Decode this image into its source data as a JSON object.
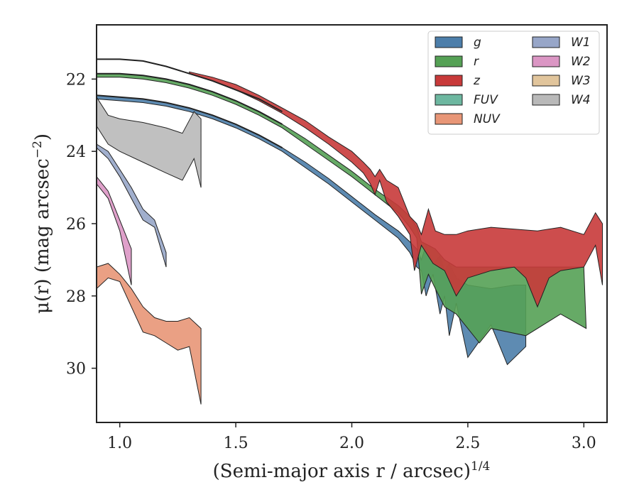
{
  "chart_data": {
    "type": "area",
    "xlabel": "(Semi-major axis r / arcsec)",
    "xlabel_power": "1/4",
    "ylabel": "μ(r) (mag arcsec",
    "ylabel_power": "−2",
    "ylabel_close": ")",
    "xlim": [
      0.9,
      3.1
    ],
    "ylim": [
      31.5,
      20.5
    ],
    "y_inverted": true,
    "xticks": [
      {
        "value": 1.0,
        "label": "1.0"
      },
      {
        "value": 1.5,
        "label": "1.5"
      },
      {
        "value": 2.0,
        "label": "2.0"
      },
      {
        "value": 2.5,
        "label": "2.5"
      },
      {
        "value": 3.0,
        "label": "3.0"
      }
    ],
    "yticks": [
      {
        "value": 22,
        "label": "22"
      },
      {
        "value": 24,
        "label": "24"
      },
      {
        "value": 26,
        "label": "26"
      },
      {
        "value": 28,
        "label": "28"
      },
      {
        "value": 30,
        "label": "30"
      }
    ],
    "legend_position": "top-right",
    "legend_columns": 2,
    "series": [
      {
        "name": "g",
        "color": "#4c7eaa",
        "upper": [
          [
            0.9,
            22.45
          ],
          [
            1.0,
            22.5
          ],
          [
            1.1,
            22.55
          ],
          [
            1.2,
            22.65
          ],
          [
            1.3,
            22.8
          ],
          [
            1.4,
            23.0
          ],
          [
            1.5,
            23.25
          ],
          [
            1.6,
            23.55
          ],
          [
            1.7,
            23.9
          ],
          [
            1.8,
            24.3
          ],
          [
            1.9,
            24.75
          ],
          [
            2.0,
            25.25
          ],
          [
            2.1,
            25.75
          ],
          [
            2.2,
            26.2
          ],
          [
            2.25,
            26.5
          ],
          [
            2.28,
            26.7
          ],
          [
            2.3,
            27.0
          ],
          [
            2.32,
            26.6
          ],
          [
            2.35,
            27.1
          ],
          [
            2.38,
            26.9
          ],
          [
            2.4,
            27.3
          ],
          [
            2.42,
            27.1
          ],
          [
            2.45,
            27.5
          ],
          [
            2.5,
            27.7
          ],
          [
            2.6,
            27.8
          ],
          [
            2.7,
            27.7
          ],
          [
            2.75,
            27.7
          ]
        ],
        "lower": [
          [
            0.9,
            22.55
          ],
          [
            1.0,
            22.6
          ],
          [
            1.1,
            22.65
          ],
          [
            1.2,
            22.75
          ],
          [
            1.3,
            22.9
          ],
          [
            1.4,
            23.1
          ],
          [
            1.5,
            23.35
          ],
          [
            1.6,
            23.65
          ],
          [
            1.7,
            24.0
          ],
          [
            1.8,
            24.45
          ],
          [
            1.9,
            24.9
          ],
          [
            2.0,
            25.4
          ],
          [
            2.1,
            25.9
          ],
          [
            2.2,
            26.4
          ],
          [
            2.25,
            26.8
          ],
          [
            2.28,
            27.2
          ],
          [
            2.3,
            27.3
          ],
          [
            2.32,
            28.0
          ],
          [
            2.35,
            27.4
          ],
          [
            2.38,
            28.5
          ],
          [
            2.4,
            28.0
          ],
          [
            2.42,
            29.1
          ],
          [
            2.45,
            28.2
          ],
          [
            2.5,
            29.7
          ],
          [
            2.6,
            28.8
          ],
          [
            2.67,
            29.9
          ],
          [
            2.75,
            29.4
          ]
        ]
      },
      {
        "name": "r",
        "color": "#55a155",
        "upper": [
          [
            0.9,
            21.85
          ],
          [
            1.0,
            21.85
          ],
          [
            1.1,
            21.9
          ],
          [
            1.2,
            22.0
          ],
          [
            1.3,
            22.15
          ],
          [
            1.4,
            22.35
          ],
          [
            1.5,
            22.6
          ],
          [
            1.6,
            22.9
          ],
          [
            1.7,
            23.25
          ],
          [
            1.8,
            23.65
          ],
          [
            1.9,
            24.1
          ],
          [
            2.0,
            24.55
          ],
          [
            2.1,
            25.05
          ],
          [
            2.2,
            25.5
          ],
          [
            2.25,
            25.8
          ],
          [
            2.28,
            26.1
          ],
          [
            2.3,
            26.5
          ],
          [
            2.33,
            26.6
          ],
          [
            2.36,
            26.7
          ],
          [
            2.4,
            27.0
          ],
          [
            2.45,
            27.2
          ],
          [
            2.5,
            27.2
          ],
          [
            2.6,
            27.2
          ],
          [
            2.7,
            27.2
          ],
          [
            2.8,
            27.2
          ],
          [
            2.9,
            27.2
          ],
          [
            3.0,
            27.2
          ]
        ],
        "lower": [
          [
            0.9,
            21.95
          ],
          [
            1.0,
            21.95
          ],
          [
            1.1,
            22.0
          ],
          [
            1.2,
            22.1
          ],
          [
            1.3,
            22.25
          ],
          [
            1.4,
            22.45
          ],
          [
            1.5,
            22.7
          ],
          [
            1.6,
            23.0
          ],
          [
            1.7,
            23.35
          ],
          [
            1.8,
            23.8
          ],
          [
            1.9,
            24.25
          ],
          [
            2.0,
            24.7
          ],
          [
            2.1,
            25.2
          ],
          [
            2.2,
            25.7
          ],
          [
            2.25,
            26.1
          ],
          [
            2.28,
            26.4
          ],
          [
            2.3,
            27.95
          ],
          [
            2.33,
            27.4
          ],
          [
            2.36,
            27.8
          ],
          [
            2.4,
            28.3
          ],
          [
            2.45,
            28.5
          ],
          [
            2.5,
            28.9
          ],
          [
            2.55,
            29.3
          ],
          [
            2.6,
            28.9
          ],
          [
            2.75,
            29.1
          ],
          [
            2.9,
            28.5
          ],
          [
            3.01,
            28.9
          ]
        ]
      },
      {
        "name": "z",
        "color": "#c83a3a",
        "upper": [
          [
            1.3,
            21.8
          ],
          [
            1.4,
            21.95
          ],
          [
            1.5,
            22.15
          ],
          [
            1.6,
            22.45
          ],
          [
            1.7,
            22.8
          ],
          [
            1.8,
            23.15
          ],
          [
            1.9,
            23.6
          ],
          [
            2.0,
            24.0
          ],
          [
            2.05,
            24.3
          ],
          [
            2.08,
            24.5
          ],
          [
            2.1,
            24.7
          ],
          [
            2.12,
            24.5
          ],
          [
            2.15,
            24.8
          ],
          [
            2.2,
            25.0
          ],
          [
            2.25,
            25.8
          ],
          [
            2.28,
            26.0
          ],
          [
            2.3,
            26.3
          ],
          [
            2.33,
            25.6
          ],
          [
            2.36,
            26.2
          ],
          [
            2.4,
            26.3
          ],
          [
            2.45,
            26.3
          ],
          [
            2.5,
            26.2
          ],
          [
            2.6,
            26.1
          ],
          [
            2.8,
            26.2
          ],
          [
            2.9,
            26.1
          ],
          [
            3.0,
            26.3
          ],
          [
            3.05,
            25.7
          ],
          [
            3.08,
            26.0
          ]
        ],
        "lower": [
          [
            1.3,
            21.85
          ],
          [
            1.4,
            22.05
          ],
          [
            1.5,
            22.3
          ],
          [
            1.6,
            22.6
          ],
          [
            1.7,
            22.95
          ],
          [
            1.8,
            23.35
          ],
          [
            1.9,
            23.8
          ],
          [
            2.0,
            24.3
          ],
          [
            2.05,
            24.6
          ],
          [
            2.08,
            24.9
          ],
          [
            2.1,
            25.2
          ],
          [
            2.12,
            24.8
          ],
          [
            2.15,
            25.4
          ],
          [
            2.2,
            25.8
          ],
          [
            2.25,
            26.3
          ],
          [
            2.27,
            27.3
          ],
          [
            2.3,
            26.6
          ],
          [
            2.35,
            27.1
          ],
          [
            2.4,
            27.3
          ],
          [
            2.45,
            28.0
          ],
          [
            2.5,
            27.5
          ],
          [
            2.6,
            27.3
          ],
          [
            2.7,
            27.2
          ],
          [
            2.75,
            27.5
          ],
          [
            2.8,
            28.3
          ],
          [
            2.85,
            27.5
          ],
          [
            2.9,
            27.3
          ],
          [
            3.0,
            27.2
          ],
          [
            3.05,
            26.6
          ],
          [
            3.08,
            27.7
          ]
        ]
      },
      {
        "name": "FUV",
        "color": "#6db7a0",
        "upper": [],
        "lower": []
      },
      {
        "name": "NUV",
        "color": "#e89677",
        "upper": [
          [
            0.9,
            27.2
          ],
          [
            0.95,
            27.1
          ],
          [
            1.0,
            27.4
          ],
          [
            1.05,
            27.8
          ],
          [
            1.1,
            28.3
          ],
          [
            1.15,
            28.6
          ],
          [
            1.2,
            28.7
          ],
          [
            1.25,
            28.7
          ],
          [
            1.3,
            28.6
          ],
          [
            1.35,
            28.9
          ]
        ],
        "lower": [
          [
            0.9,
            27.8
          ],
          [
            0.95,
            27.5
          ],
          [
            1.0,
            27.6
          ],
          [
            1.05,
            28.3
          ],
          [
            1.1,
            29.0
          ],
          [
            1.15,
            29.1
          ],
          [
            1.2,
            29.3
          ],
          [
            1.25,
            29.5
          ],
          [
            1.3,
            29.4
          ],
          [
            1.35,
            31.0
          ]
        ]
      },
      {
        "name": "W1",
        "color": "#97a6c8",
        "upper": [
          [
            0.9,
            23.8
          ],
          [
            0.95,
            24.0
          ],
          [
            1.0,
            24.5
          ],
          [
            1.05,
            25.0
          ],
          [
            1.1,
            25.6
          ],
          [
            1.15,
            25.9
          ],
          [
            1.2,
            26.8
          ]
        ],
        "lower": [
          [
            0.9,
            23.9
          ],
          [
            0.95,
            24.2
          ],
          [
            1.0,
            24.7
          ],
          [
            1.05,
            25.3
          ],
          [
            1.1,
            25.9
          ],
          [
            1.15,
            26.1
          ],
          [
            1.2,
            27.2
          ]
        ]
      },
      {
        "name": "W2",
        "color": "#db96c4",
        "upper": [
          [
            0.9,
            24.7
          ],
          [
            0.95,
            25.1
          ],
          [
            1.0,
            25.9
          ],
          [
            1.05,
            26.7
          ]
        ],
        "lower": [
          [
            0.9,
            24.9
          ],
          [
            0.95,
            25.3
          ],
          [
            1.0,
            26.2
          ],
          [
            1.05,
            27.7
          ]
        ]
      },
      {
        "name": "W3",
        "color": "#e1c59c",
        "upper": [],
        "lower": []
      },
      {
        "name": "W4",
        "color": "#b9b9b9",
        "upper": [
          [
            0.9,
            22.5
          ],
          [
            0.95,
            23.0
          ],
          [
            1.0,
            23.1
          ],
          [
            1.1,
            23.2
          ],
          [
            1.2,
            23.35
          ],
          [
            1.27,
            23.5
          ],
          [
            1.32,
            22.9
          ],
          [
            1.35,
            23.1
          ]
        ],
        "lower": [
          [
            0.9,
            23.3
          ],
          [
            0.95,
            23.8
          ],
          [
            1.0,
            24.0
          ],
          [
            1.1,
            24.3
          ],
          [
            1.2,
            24.6
          ],
          [
            1.27,
            24.8
          ],
          [
            1.32,
            24.2
          ],
          [
            1.35,
            25.0
          ]
        ]
      }
    ],
    "outer_lines": [
      [
        [
          0.9,
          21.45
        ],
        [
          1.0,
          21.45
        ],
        [
          1.1,
          21.5
        ],
        [
          1.2,
          21.65
        ],
        [
          1.3,
          21.85
        ],
        [
          1.4,
          22.05
        ],
        [
          1.5,
          22.3
        ],
        [
          1.6,
          22.55
        ],
        [
          1.7,
          22.9
        ]
      ],
      [
        [
          0.9,
          21.85
        ],
        [
          1.0,
          21.85
        ],
        [
          1.1,
          21.9
        ],
        [
          1.2,
          22.0
        ],
        [
          1.3,
          22.15
        ],
        [
          1.4,
          22.35
        ],
        [
          1.5,
          22.6
        ],
        [
          1.6,
          22.9
        ],
        [
          1.7,
          23.25
        ]
      ],
      [
        [
          0.9,
          22.45
        ],
        [
          1.0,
          22.5
        ],
        [
          1.1,
          22.55
        ],
        [
          1.2,
          22.65
        ],
        [
          1.3,
          22.8
        ],
        [
          1.4,
          23.0
        ],
        [
          1.5,
          23.25
        ],
        [
          1.6,
          23.55
        ],
        [
          1.7,
          23.9
        ]
      ]
    ]
  }
}
